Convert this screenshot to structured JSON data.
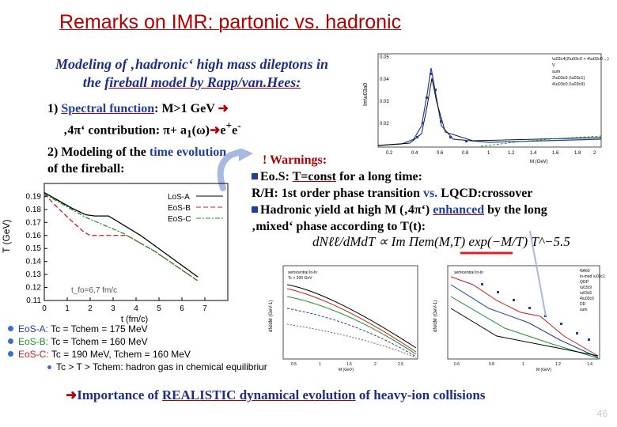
{
  "title": "Remarks on IMR: partonic vs. hadronic",
  "intro": {
    "line1": "Modeling of ‚hadronic‘ high mass dileptons in",
    "line2_a": "the ",
    "line2_b": "fireball model by Rapp/van.Hees:"
  },
  "item1": {
    "a": "1) ",
    "b": "Spectral function",
    "c": ": M>1 GeV ",
    "d": "‚4π‘ contribution: π+ a",
    "e": "1",
    "f": "(ω)",
    "g": "e",
    "h": "+",
    "i": "e",
    "j": "-"
  },
  "item2": {
    "a": "2) Modeling of the ",
    "b": "time evolution",
    "c": "of the fireball:"
  },
  "warnings": {
    "header": "! Warnings:",
    "w1_a": "Eo.S: ",
    "w1_b": "T=const",
    "w1_c": " for a long time:",
    "w2_a": "R/H: 1st order phase transition ",
    "w2_b": "vs.",
    "w2_c": " LQCD:crossover",
    "w3_a": "Hadronic yield at high M (‚4π‘) ",
    "w3_b": "enhanced",
    "w3_c": " by the long",
    "w4": "‚mixed‘ phase according to T(t):"
  },
  "formula": "dNℓℓ/dMdT ∝ Im Πem(M,T) exp(−M/T) T^−5.5",
  "eos_list": [
    {
      "name": "EoS-A:",
      "text": "Tc = Tchem = 175 MeV",
      "color": "#1f3f9f"
    },
    {
      "name": "EoS-B:",
      "text": "Tc = Tchem = 160 MeV",
      "color": "#1f8f2f"
    },
    {
      "name": "EoS-C:",
      "text": "Tc = 190 MeV, Tchem = 160 MeV",
      "color": "#c02020"
    },
    {
      "name": "",
      "text": "Tc > T > Tchem: hadron gas in chemical equilibrium",
      "color": "#000000"
    }
  ],
  "bottom": {
    "arrow": "➜",
    "a": "Importance of ",
    "b": "REALISTIC dynamical evolution",
    "c": " of heavy-ion collisions"
  },
  "page_number": "46",
  "chart_data": [
    {
      "type": "line",
      "ylabel": "T (GeV)",
      "xlabel": "t (fm/c)",
      "xlim": [
        0,
        8
      ],
      "ylim": [
        0.11,
        0.2
      ],
      "xticks": [
        "0",
        "1",
        "2",
        "3",
        "4",
        "5",
        "6",
        "7"
      ],
      "yticks": [
        "0.11",
        "0.12",
        "0.13",
        "0.14",
        "0.15",
        "0.16",
        "0.17",
        "0.18",
        "0.19"
      ],
      "annotation": "t_fo=6,7 fm/c",
      "series": [
        {
          "name": "LoS-A",
          "color": "#000000",
          "dash": "",
          "x": [
            0,
            0.6,
            1.2,
            1.8,
            2.2,
            2.8,
            4.2,
            6.7
          ],
          "y": [
            0.193,
            0.187,
            0.181,
            0.176,
            0.175,
            0.175,
            0.16,
            0.128
          ]
        },
        {
          "name": "EoS-B",
          "color": "#c02020",
          "dash": "6,3",
          "x": [
            0,
            0.6,
            1.2,
            1.7,
            2.0,
            3.6,
            4.8,
            6.7
          ],
          "y": [
            0.192,
            0.181,
            0.171,
            0.163,
            0.16,
            0.16,
            0.148,
            0.125
          ]
        },
        {
          "name": "EoS-C",
          "color": "#1f8f2f",
          "dash": "6,2,2,2",
          "x": [
            0,
            0.6,
            1.2,
            1.8,
            2.6,
            3.4,
            4.8,
            6.7
          ],
          "y": [
            0.192,
            0.186,
            0.18,
            0.174,
            0.168,
            0.162,
            0.148,
            0.125
          ]
        }
      ]
    }
  ]
}
